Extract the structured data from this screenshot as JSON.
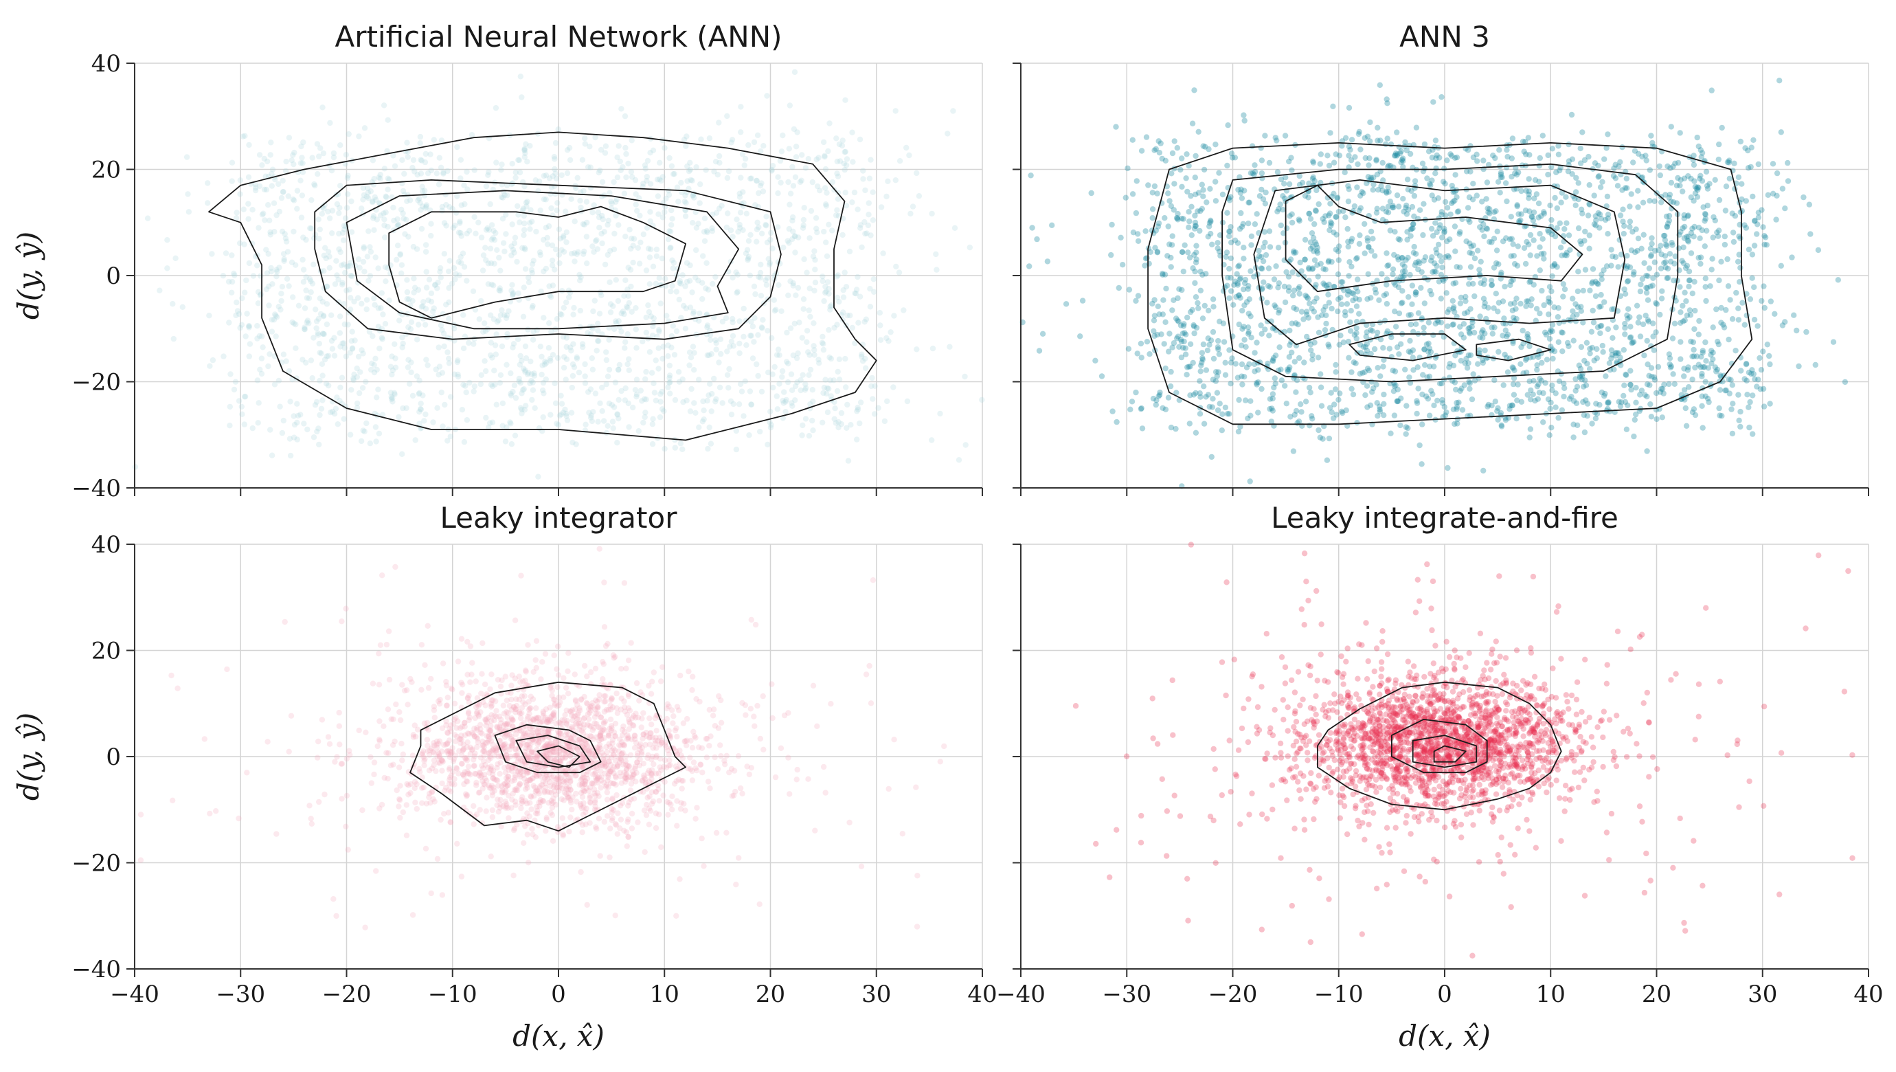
{
  "chart_data": [
    {
      "type": "scatter",
      "title": "Artificial Neural Network (ANN)",
      "xlabel": "",
      "ylabel": "d(y, ŷ)",
      "xlim": [
        -40,
        40
      ],
      "ylim": [
        -40,
        40
      ],
      "grid": true,
      "color": "#a9d4dc",
      "point_alpha": 0.25,
      "distribution": {
        "shape": "rect",
        "x_range": [
          -30,
          30
        ],
        "y_range": [
          -30,
          25
        ],
        "count": 2200,
        "spread": 10
      },
      "contours": [
        [
          [
            -33,
            12
          ],
          [
            -30,
            17
          ],
          [
            -24,
            20
          ],
          [
            -16,
            23
          ],
          [
            -8,
            26
          ],
          [
            0,
            27
          ],
          [
            8,
            26
          ],
          [
            16,
            24
          ],
          [
            24,
            21
          ],
          [
            27,
            14
          ],
          [
            26,
            5
          ],
          [
            26,
            -6
          ],
          [
            28,
            -12
          ],
          [
            30,
            -16
          ],
          [
            28,
            -22
          ],
          [
            22,
            -26
          ],
          [
            12,
            -31
          ],
          [
            0,
            -29
          ],
          [
            -12,
            -29
          ],
          [
            -20,
            -25
          ],
          [
            -26,
            -18
          ],
          [
            -28,
            -8
          ],
          [
            -28,
            2
          ],
          [
            -30,
            10
          ]
        ],
        [
          [
            -23,
            12
          ],
          [
            -20,
            17
          ],
          [
            -12,
            18
          ],
          [
            0,
            17
          ],
          [
            12,
            16
          ],
          [
            20,
            12
          ],
          [
            21,
            4
          ],
          [
            20,
            -4
          ],
          [
            17,
            -10
          ],
          [
            10,
            -12
          ],
          [
            0,
            -11
          ],
          [
            -10,
            -12
          ],
          [
            -18,
            -10
          ],
          [
            -22,
            -3
          ],
          [
            -23,
            5
          ]
        ],
        [
          [
            -20,
            10
          ],
          [
            -15,
            15
          ],
          [
            -5,
            16
          ],
          [
            5,
            15
          ],
          [
            14,
            12
          ],
          [
            17,
            5
          ],
          [
            15,
            -2
          ],
          [
            16,
            -7
          ],
          [
            10,
            -9
          ],
          [
            0,
            -10
          ],
          [
            -8,
            -10
          ],
          [
            -15,
            -7
          ],
          [
            -19,
            -1
          ]
        ],
        [
          [
            -16,
            8
          ],
          [
            -12,
            12
          ],
          [
            -4,
            12
          ],
          [
            0,
            11
          ],
          [
            4,
            13
          ],
          [
            8,
            10
          ],
          [
            12,
            6
          ],
          [
            11,
            -1
          ],
          [
            8,
            -3
          ],
          [
            0,
            -3
          ],
          [
            -6,
            -5
          ],
          [
            -12,
            -8
          ],
          [
            -15,
            -5
          ],
          [
            -16,
            2
          ]
        ]
      ]
    },
    {
      "type": "scatter",
      "title": "ANN 3",
      "xlabel": "",
      "ylabel": "",
      "xlim": [
        -40,
        40
      ],
      "ylim": [
        -40,
        40
      ],
      "grid": true,
      "color": "#1b8aa0",
      "point_alpha": 0.35,
      "distribution": {
        "shape": "rect",
        "x_range": [
          -28,
          30
        ],
        "y_range": [
          -28,
          25
        ],
        "count": 2600,
        "spread": 6
      },
      "contours": [
        [
          [
            -26,
            20
          ],
          [
            -20,
            24
          ],
          [
            -10,
            25
          ],
          [
            0,
            24
          ],
          [
            10,
            25
          ],
          [
            20,
            24
          ],
          [
            27,
            20
          ],
          [
            28,
            12
          ],
          [
            28,
            0
          ],
          [
            29,
            -12
          ],
          [
            26,
            -20
          ],
          [
            20,
            -25
          ],
          [
            10,
            -26
          ],
          [
            0,
            -27
          ],
          [
            -10,
            -28
          ],
          [
            -20,
            -28
          ],
          [
            -26,
            -22
          ],
          [
            -28,
            -10
          ],
          [
            -28,
            5
          ]
        ],
        [
          [
            -20,
            18
          ],
          [
            -10,
            20
          ],
          [
            0,
            20
          ],
          [
            10,
            21
          ],
          [
            18,
            19
          ],
          [
            22,
            12
          ],
          [
            22,
            0
          ],
          [
            21,
            -12
          ],
          [
            15,
            -18
          ],
          [
            5,
            -19
          ],
          [
            -5,
            -20
          ],
          [
            -15,
            -19
          ],
          [
            -20,
            -14
          ],
          [
            -21,
            0
          ],
          [
            -21,
            12
          ]
        ],
        [
          [
            -16,
            16
          ],
          [
            -8,
            18
          ],
          [
            0,
            16
          ],
          [
            10,
            17
          ],
          [
            16,
            12
          ],
          [
            17,
            3
          ],
          [
            16,
            -8
          ],
          [
            8,
            -9
          ],
          [
            0,
            -8
          ],
          [
            -8,
            -9
          ],
          [
            -14,
            -13
          ],
          [
            -17,
            -8
          ],
          [
            -18,
            4
          ]
        ],
        [
          [
            -15,
            14
          ],
          [
            -12,
            17
          ],
          [
            -10,
            13
          ],
          [
            -6,
            10
          ],
          [
            2,
            11
          ],
          [
            10,
            9
          ],
          [
            13,
            4
          ],
          [
            11,
            -1
          ],
          [
            4,
            0
          ],
          [
            -5,
            -1
          ],
          [
            -12,
            -3
          ],
          [
            -15,
            3
          ]
        ],
        [
          [
            -9,
            -13
          ],
          [
            -5,
            -11
          ],
          [
            0,
            -11
          ],
          [
            2,
            -14
          ],
          [
            -3,
            -16
          ],
          [
            -8,
            -15
          ]
        ],
        [
          [
            3,
            -13
          ],
          [
            7,
            -12
          ],
          [
            10,
            -14
          ],
          [
            6,
            -16
          ],
          [
            3,
            -15
          ]
        ]
      ]
    },
    {
      "type": "scatter",
      "title": "Leaky integrator",
      "xlabel": "d(x, x̂)",
      "ylabel": "d(y, ŷ)",
      "xlim": [
        -40,
        40
      ],
      "ylim": [
        -40,
        40
      ],
      "grid": true,
      "color": "#f2a9bb",
      "point_alpha": 0.25,
      "distribution": {
        "shape": "gauss",
        "x_range": [
          -14,
          12
        ],
        "y_range": [
          -13,
          14
        ],
        "count": 2000,
        "spread": 7
      },
      "contours": [
        [
          [
            -13,
            5
          ],
          [
            -10,
            8
          ],
          [
            -6,
            12
          ],
          [
            0,
            14
          ],
          [
            6,
            13
          ],
          [
            9,
            10
          ],
          [
            10,
            5
          ],
          [
            11,
            0
          ],
          [
            12,
            -2
          ],
          [
            9,
            -5
          ],
          [
            6,
            -8
          ],
          [
            3,
            -11
          ],
          [
            0,
            -14
          ],
          [
            -3,
            -12
          ],
          [
            -7,
            -13
          ],
          [
            -11,
            -7
          ],
          [
            -14,
            -3
          ],
          [
            -13,
            2
          ]
        ],
        [
          [
            -6,
            4
          ],
          [
            -3,
            6
          ],
          [
            1,
            5
          ],
          [
            3,
            3
          ],
          [
            4,
            -1
          ],
          [
            2,
            -3
          ],
          [
            -2,
            -3
          ],
          [
            -5,
            -1
          ]
        ],
        [
          [
            -4,
            3
          ],
          [
            -1,
            4
          ],
          [
            2,
            2
          ],
          [
            3,
            -1
          ],
          [
            0,
            -2
          ],
          [
            -3,
            -1
          ]
        ],
        [
          [
            -2,
            1
          ],
          [
            0,
            2
          ],
          [
            2,
            0
          ],
          [
            1,
            -2
          ],
          [
            -1,
            -1
          ]
        ]
      ]
    },
    {
      "type": "scatter",
      "title": "Leaky integrate-and-fire",
      "xlabel": "d(x, x̂)",
      "ylabel": "",
      "xlim": [
        -40,
        40
      ],
      "ylim": [
        -40,
        40
      ],
      "grid": true,
      "color": "#e8304f",
      "point_alpha": 0.3,
      "distribution": {
        "shape": "gauss",
        "x_range": [
          -12,
          11
        ],
        "y_range": [
          -10,
          15
        ],
        "count": 2200,
        "spread": 8
      },
      "contours": [
        [
          [
            -11,
            5
          ],
          [
            -8,
            9
          ],
          [
            -4,
            13
          ],
          [
            0,
            14
          ],
          [
            5,
            13
          ],
          [
            8,
            10
          ],
          [
            10,
            6
          ],
          [
            11,
            1
          ],
          [
            10,
            -3
          ],
          [
            8,
            -6
          ],
          [
            5,
            -8
          ],
          [
            0,
            -10
          ],
          [
            -5,
            -9
          ],
          [
            -9,
            -6
          ],
          [
            -12,
            -2
          ],
          [
            -12,
            2
          ]
        ],
        [
          [
            -5,
            4
          ],
          [
            -2,
            7
          ],
          [
            2,
            6
          ],
          [
            4,
            3
          ],
          [
            4,
            -1
          ],
          [
            2,
            -3
          ],
          [
            -2,
            -3
          ],
          [
            -5,
            0
          ]
        ],
        [
          [
            -3,
            3
          ],
          [
            0,
            4
          ],
          [
            3,
            2
          ],
          [
            3,
            -1
          ],
          [
            0,
            -2
          ],
          [
            -3,
            -1
          ]
        ],
        [
          [
            -1,
            1
          ],
          [
            0,
            2
          ],
          [
            2,
            1
          ],
          [
            1,
            -1
          ],
          [
            -1,
            -1
          ]
        ]
      ]
    }
  ]
}
